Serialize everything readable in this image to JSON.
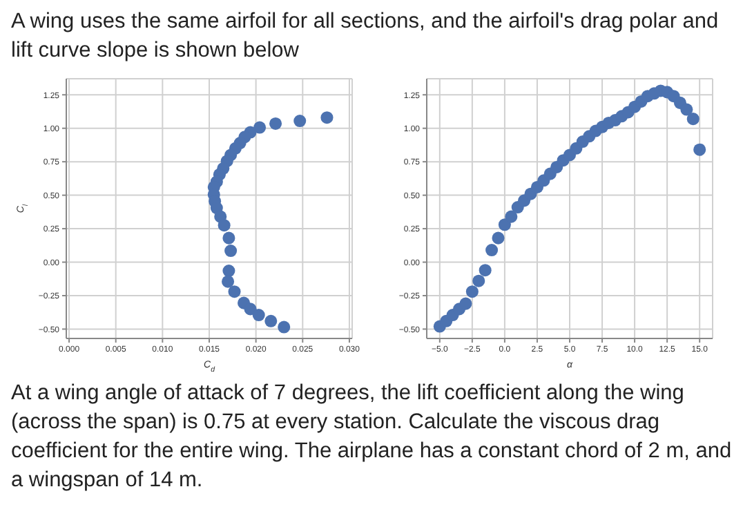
{
  "chart_data": [
    {
      "type": "scatter",
      "title": "A wing uses the same airfoil for all sections, and the airfoil's drag polar and lift curve slope is shown below",
      "xlabel": "C$_{d}$",
      "ylabel": "C$_{l}$",
      "color": "#4c72b0",
      "marker": "circle",
      "grid": true,
      "x": [
        0.0276,
        0.0247,
        0.0221,
        0.0204,
        0.0194,
        0.0188,
        0.0183,
        0.0178,
        0.0173,
        0.0169,
        0.0165,
        0.0161,
        0.0158,
        0.0155,
        0.0155,
        0.0156,
        0.0158,
        0.0162,
        0.0166,
        0.0171,
        0.0173,
        0.0171,
        0.017,
        0.0177,
        0.0187,
        0.0194,
        0.0203,
        0.0216,
        0.023
      ],
      "values": [
        1.08,
        1.055,
        1.035,
        1.006,
        0.97,
        0.935,
        0.89,
        0.85,
        0.8,
        0.755,
        0.7,
        0.655,
        0.6,
        0.56,
        0.505,
        0.455,
        0.405,
        0.34,
        0.275,
        0.18,
        0.085,
        -0.065,
        -0.145,
        -0.22,
        -0.305,
        -0.35,
        -0.395,
        -0.44,
        -0.485
      ],
      "xlim": [
        -0.0003,
        0.0303
      ],
      "ylim": [
        -0.57,
        1.37
      ],
      "xticks": [
        {
          "value": 0,
          "label": "0.000"
        },
        {
          "value": 0.005,
          "label": "0.005"
        },
        {
          "value": 0.01,
          "label": "0.010"
        },
        {
          "value": 0.015,
          "label": "0.015"
        },
        {
          "value": 0.02,
          "label": "0.020"
        },
        {
          "value": 0.025,
          "label": "0.025"
        },
        {
          "value": 0.03,
          "label": "0.030"
        }
      ],
      "yticks": [
        {
          "value": -0.5,
          "label": "−0.50"
        },
        {
          "value": -0.25,
          "label": "−0.25"
        },
        {
          "value": 0,
          "label": "0.00"
        },
        {
          "value": 0.25,
          "label": "0.25"
        },
        {
          "value": 0.5,
          "label": "0.50"
        },
        {
          "value": 0.75,
          "label": "0.75"
        },
        {
          "value": 1,
          "label": "1.00"
        },
        {
          "value": 1.25,
          "label": "1.25"
        }
      ]
    },
    {
      "type": "scatter",
      "xlabel": "α",
      "color": "#4c72b0",
      "marker": "circle",
      "grid": true,
      "annotations": [
        "At a wing angle of attack of 7 degrees, the lift coefficient along the wing (across the span) is 0.75 at every station.  Calculate the viscous drag coefficient for the entire wing.  The airplane has a constant chord of 2 m, and a wingspan of 14 m."
      ],
      "x": [
        -5,
        -4.5,
        -4,
        -3.5,
        -3,
        -2.5,
        -2,
        -1.5,
        -1,
        -0.5,
        0,
        0.5,
        1,
        1.5,
        2,
        2.5,
        3,
        3.5,
        4,
        4.5,
        5,
        5.5,
        6,
        6.5,
        7,
        7.5,
        8,
        8.5,
        9,
        9.5,
        10,
        10.5,
        11,
        11.5,
        12,
        12.5,
        13,
        13.5,
        14,
        14.5,
        15
      ],
      "values": [
        -0.48,
        -0.44,
        -0.395,
        -0.35,
        -0.31,
        -0.22,
        -0.14,
        -0.06,
        0.09,
        0.18,
        0.28,
        0.34,
        0.41,
        0.46,
        0.51,
        0.56,
        0.61,
        0.66,
        0.71,
        0.76,
        0.8,
        0.85,
        0.9,
        0.94,
        0.98,
        1.01,
        1.04,
        1.06,
        1.09,
        1.12,
        1.16,
        1.2,
        1.24,
        1.26,
        1.28,
        1.27,
        1.24,
        1.19,
        1.14,
        1.07,
        0.84
      ],
      "xlim": [
        -6,
        16
      ],
      "ylim": [
        -0.57,
        1.37
      ],
      "xticks": [
        {
          "value": -5,
          "label": "−5.0"
        },
        {
          "value": -2.5,
          "label": "−2.5"
        },
        {
          "value": 0,
          "label": "0.0"
        },
        {
          "value": 2.5,
          "label": "2.5"
        },
        {
          "value": 5,
          "label": "5.0"
        },
        {
          "value": 7.5,
          "label": "7.5"
        },
        {
          "value": 10,
          "label": "10.0"
        },
        {
          "value": 12.5,
          "label": "12.5"
        },
        {
          "value": 15,
          "label": "15.0"
        }
      ],
      "yticks": [
        {
          "value": -0.5,
          "label": "−0.50"
        },
        {
          "value": -0.25,
          "label": "−0.25"
        },
        {
          "value": 0,
          "label": "0.00"
        },
        {
          "value": 0.25,
          "label": "0.25"
        },
        {
          "value": 0.5,
          "label": "0.50"
        },
        {
          "value": 0.75,
          "label": "0.75"
        },
        {
          "value": 1,
          "label": "1.00"
        },
        {
          "value": 1.25,
          "label": "1.25"
        }
      ]
    }
  ]
}
